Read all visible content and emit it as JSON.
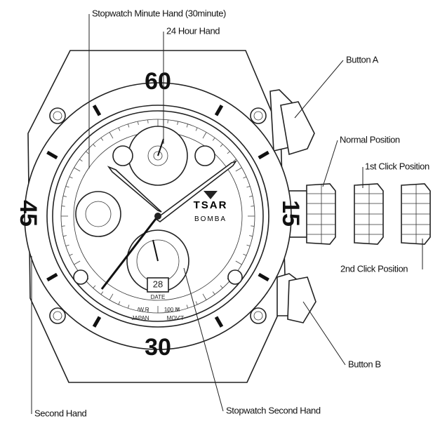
{
  "callouts": {
    "stopwatch_minute_hand": "Stopwatch Minute Hand (30minute)",
    "hour24_hand": "24 Hour Hand",
    "button_a": "Button A",
    "normal_position": "Normal Position",
    "first_click": "1st Click Position",
    "second_click": "2nd Click Position",
    "button_b": "Button B",
    "second_hand": "Second Hand",
    "stopwatch_second_hand": "Stopwatch Second Hand"
  },
  "bezel": {
    "top": "60",
    "right": "15",
    "bottom": "30",
    "left": "45"
  },
  "dial": {
    "brand": "TSAR",
    "model": "BOMBA",
    "date": "28",
    "date_label": "DATE",
    "water": "W.R",
    "depth": "100 M",
    "origin": "JAPAN",
    "movement": "MOV'T"
  }
}
